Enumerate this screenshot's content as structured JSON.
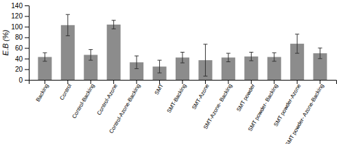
{
  "chart_data": {
    "type": "bar",
    "categories": [
      "Backing",
      "Control",
      "Control-Backing",
      "Control-Azone",
      "Control-Azone-Backing",
      "SMT",
      "SMT-Backing",
      "SMT-Azone",
      "SMT-Azone- Backing",
      "SMT powder",
      "SMT powder- Backing",
      "SMT powder-Azone",
      "SMT powder- Azone-Backing"
    ],
    "values": [
      43,
      103,
      47,
      104,
      33,
      25,
      42,
      37,
      42,
      44,
      43,
      68,
      50
    ],
    "errors": [
      8,
      20,
      10,
      8,
      12,
      12,
      10,
      30,
      8,
      8,
      8,
      18,
      10
    ],
    "color": "#8c8c8c",
    "ylabel": "E.B (%)",
    "ylim": [
      0,
      140
    ],
    "yticks": [
      0,
      20,
      40,
      60,
      80,
      100,
      120,
      140
    ],
    "grid": false
  }
}
